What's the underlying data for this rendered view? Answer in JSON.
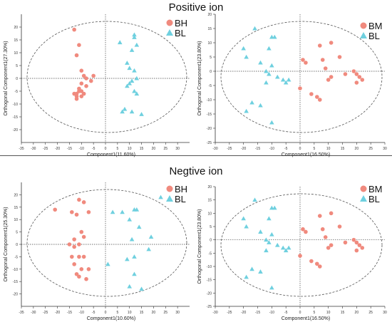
{
  "titles": {
    "positive": "Positive ion",
    "negative": "Negtive ion"
  },
  "colors": {
    "group_a": "#f08a7e",
    "group_b": "#6fd0df",
    "axis": "#333333",
    "ellipse": "#555555"
  },
  "chart_data": [
    {
      "type": "scatter",
      "title": "",
      "xlabel": "Component1(11.60%)",
      "ylabel": "Orthogonal Component1(27.30%)",
      "xlim": [
        -35,
        35
      ],
      "ylim": [
        -25,
        25
      ],
      "xticks": [
        -35,
        -30,
        -25,
        -20,
        -15,
        -10,
        -5,
        0,
        5,
        10,
        15,
        20,
        25,
        30
      ],
      "yticks": [
        -20,
        -15,
        -10,
        -5,
        0,
        5,
        10,
        15,
        20
      ],
      "legend_position": "top-right",
      "series": [
        {
          "name": "BH",
          "marker": "circle",
          "x": [
            -13,
            -11,
            -12,
            -10,
            -9,
            -10,
            -8,
            -6,
            -5,
            -12,
            -11,
            -13,
            -10,
            -12,
            -9,
            -11,
            -8,
            -12,
            -10
          ],
          "y": [
            19,
            13,
            9,
            3,
            1,
            -2,
            0,
            -1,
            1,
            -6,
            -5,
            -6,
            -7,
            -8,
            -6,
            -4,
            -3,
            -7,
            -5
          ]
        },
        {
          "name": "BL",
          "marker": "triangle",
          "x": [
            6,
            12,
            12,
            13,
            11,
            9,
            10,
            12,
            13,
            11,
            10,
            9,
            12,
            13,
            8,
            7,
            11,
            15
          ],
          "y": [
            14,
            17,
            16,
            13,
            11,
            6,
            4,
            3,
            0,
            -1,
            -2,
            -3,
            -5,
            -6,
            -12,
            -13,
            -13,
            -14
          ]
        }
      ]
    },
    {
      "type": "scatter",
      "title": "",
      "xlabel": "Component1(16.50%)",
      "ylabel": "Orthogonal Component1(23.80%)",
      "xlim": [
        -30,
        30
      ],
      "ylim": [
        -25,
        20
      ],
      "xticks": [
        -30,
        -25,
        -20,
        -15,
        -10,
        -5,
        0,
        5,
        10,
        15,
        20,
        25,
        30
      ],
      "yticks": [
        -25,
        -20,
        -15,
        -10,
        -5,
        0,
        5,
        10,
        15,
        20
      ],
      "legend_position": "top-right",
      "series": [
        {
          "name": "BM",
          "marker": "circle",
          "x": [
            11,
            7,
            14,
            1,
            2,
            8,
            9,
            16,
            20,
            19,
            21,
            22,
            20,
            10,
            11,
            7,
            4,
            6,
            0
          ],
          "y": [
            10,
            9,
            5,
            4,
            3,
            4,
            1,
            -1,
            -1,
            0,
            -2,
            -3,
            -4,
            -3,
            -2,
            -10,
            -8,
            -9,
            -6
          ]
        },
        {
          "name": "BL",
          "marker": "triangle",
          "x": [
            -16,
            -10,
            -9,
            -20,
            -11,
            -19,
            -14,
            -10,
            -12,
            -8,
            -6,
            -5,
            -11,
            -12,
            -17,
            -14,
            -19,
            -10,
            -4
          ],
          "y": [
            15,
            12,
            12,
            8,
            8,
            5,
            3,
            2,
            0,
            -2,
            -3,
            -4,
            -1,
            -4,
            -11,
            -12,
            -14,
            -18,
            -3
          ]
        }
      ]
    },
    {
      "type": "scatter",
      "title": "",
      "xlabel": "Component1(10.60%)",
      "ylabel": "Orthogonal Component1(25.30%)",
      "xlim": [
        -35,
        35
      ],
      "ylim": [
        -25,
        25
      ],
      "xticks": [
        -35,
        -30,
        -25,
        -20,
        -15,
        -10,
        -5,
        0,
        5,
        10,
        15,
        20,
        25,
        30
      ],
      "yticks": [
        -20,
        -15,
        -10,
        -5,
        0,
        5,
        10,
        15,
        20
      ],
      "legend_position": "top-right",
      "series": [
        {
          "name": "BH",
          "marker": "circle",
          "x": [
            -21,
            -11,
            -9,
            -14,
            -12,
            -7,
            -13,
            -10,
            -9,
            -15,
            -11,
            -13,
            -14,
            -9,
            -11,
            -7,
            -13,
            -10,
            -12,
            -11,
            -8
          ],
          "y": [
            14,
            18,
            17,
            13,
            12,
            13,
            2,
            5,
            3,
            0,
            0,
            -1,
            -5,
            -5,
            -5,
            -10,
            -8,
            -10,
            -12,
            -13,
            -14
          ]
        },
        {
          "name": "BL",
          "marker": "triangle",
          "x": [
            23,
            12,
            13,
            7,
            3,
            10,
            14,
            11,
            19,
            18,
            12,
            9,
            12,
            10,
            15,
            1
          ],
          "y": [
            19,
            14,
            14,
            13,
            13,
            10,
            7,
            2,
            3,
            -2,
            -5,
            -6,
            -12,
            -17,
            -18,
            -8
          ]
        }
      ]
    },
    {
      "type": "scatter",
      "title": "",
      "xlabel": "Component1(16.50%)",
      "ylabel": "Orthogonal Component1(23.80%)",
      "xlim": [
        -30,
        30
      ],
      "ylim": [
        -25,
        20
      ],
      "xticks": [
        -30,
        -25,
        -20,
        -15,
        -10,
        -5,
        0,
        5,
        10,
        15,
        20,
        25,
        30
      ],
      "yticks": [
        -25,
        -20,
        -15,
        -10,
        -5,
        0,
        5,
        10,
        15,
        20
      ],
      "legend_position": "top-right",
      "series": [
        {
          "name": "BM",
          "marker": "circle",
          "x": [
            11,
            7,
            14,
            1,
            2,
            8,
            9,
            16,
            20,
            19,
            21,
            22,
            20,
            10,
            11,
            7,
            4,
            6,
            0
          ],
          "y": [
            10,
            9,
            5,
            4,
            3,
            4,
            1,
            -1,
            -1,
            0,
            -2,
            -3,
            -4,
            -3,
            -2,
            -10,
            -8,
            -9,
            -6
          ]
        },
        {
          "name": "BL",
          "marker": "triangle",
          "x": [
            -16,
            -10,
            -9,
            -20,
            -11,
            -19,
            -14,
            -10,
            -12,
            -8,
            -6,
            -5,
            -11,
            -12,
            -17,
            -14,
            -19,
            -10,
            -4
          ],
          "y": [
            15,
            12,
            12,
            8,
            8,
            5,
            3,
            2,
            0,
            -2,
            -3,
            -4,
            -1,
            -4,
            -11,
            -12,
            -14,
            -18,
            -3
          ]
        }
      ]
    }
  ]
}
